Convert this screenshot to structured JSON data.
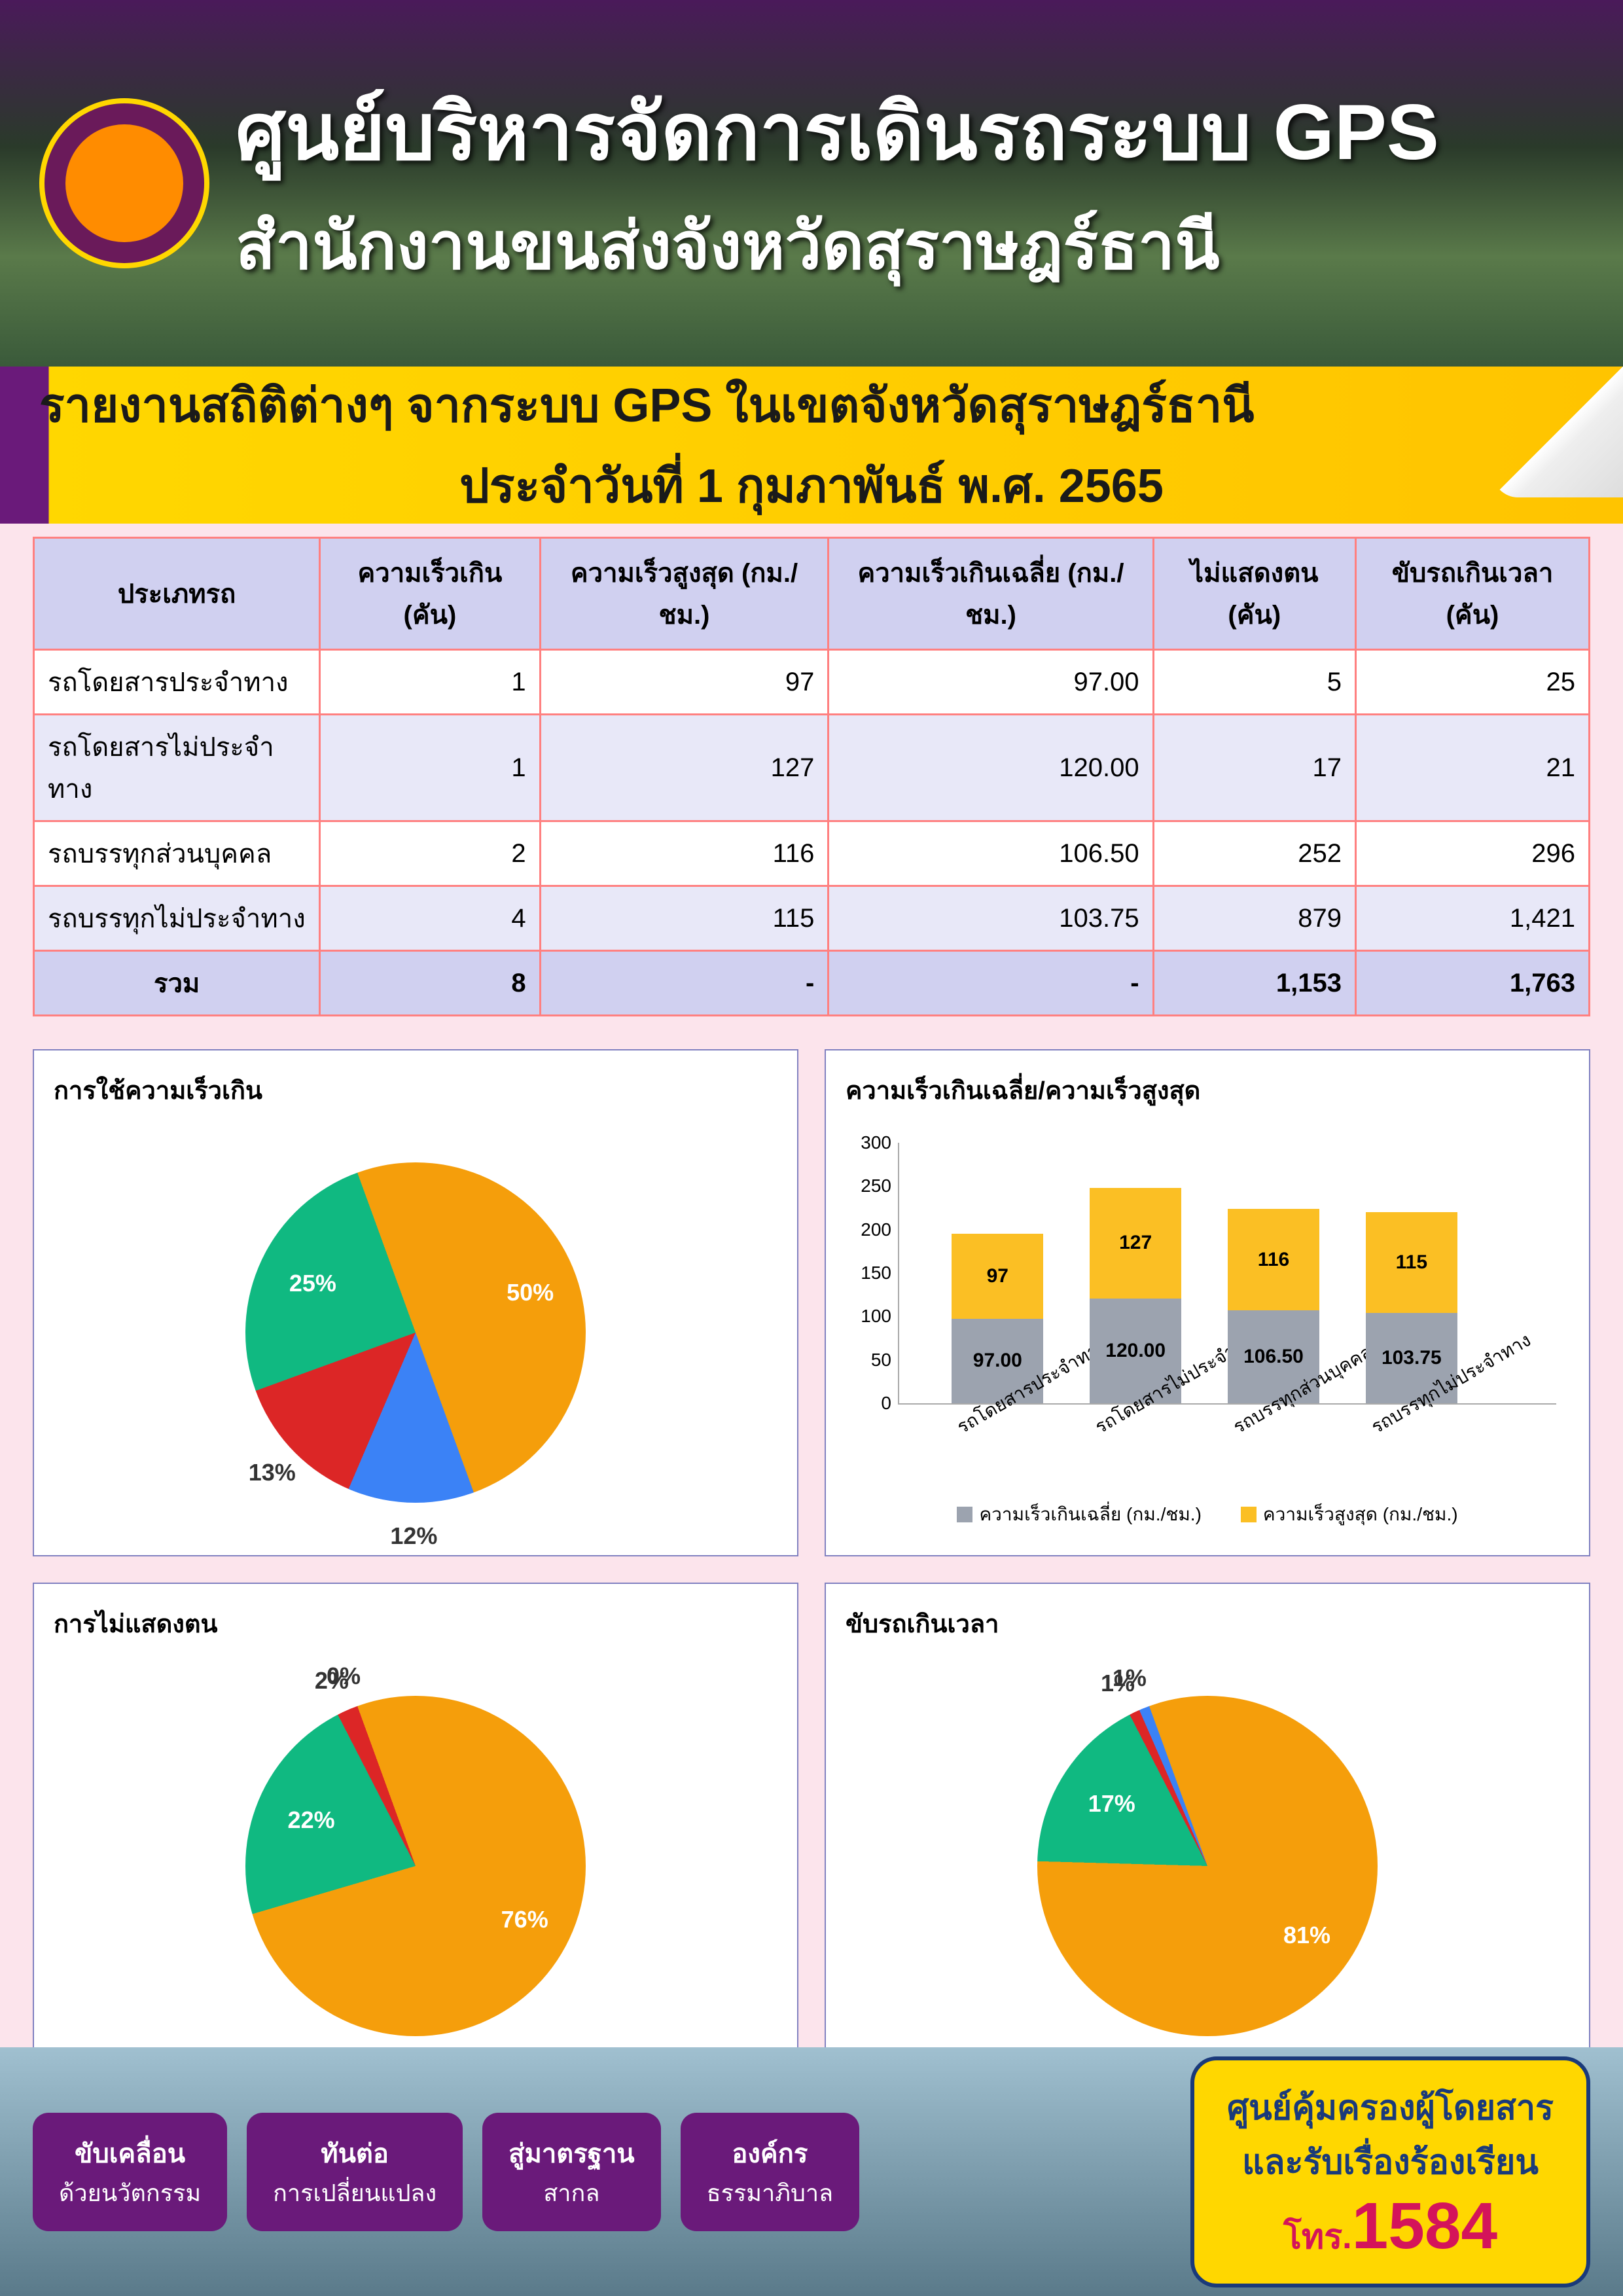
{
  "header": {
    "title": "ศูนย์บริหารจัดการเดินรถระบบ GPS",
    "subtitle": "สำนักงานขนส่งจังหวัดสุราษฎร์ธานี"
  },
  "banner": {
    "line1": "รายงานสถิติต่างๆ จากระบบ GPS ในเขตจังหวัดสุราษฎร์ธานี",
    "line2": "ประจำวันที่  1  กุมภาพันธ์ พ.ศ. 2565"
  },
  "table": {
    "columns": [
      "ประเภทรถ",
      "ความเร็วเกิน (คัน)",
      "ความเร็วสูงสุด (กม./ชม.)",
      "ความเร็วเกินเฉลี่ย (กม./ชม.)",
      "ไม่แสดงตน (คัน)",
      "ขับรถเกินเวลา (คัน)"
    ],
    "rows": [
      [
        "รถโดยสารประจำทาง",
        "1",
        "97",
        "97.00",
        "5",
        "25"
      ],
      [
        "รถโดยสารไม่ประจำทาง",
        "1",
        "127",
        "120.00",
        "17",
        "21"
      ],
      [
        "รถบรรทุกส่วนบุคคล",
        "2",
        "116",
        "106.50",
        "252",
        "296"
      ],
      [
        "รถบรรทุกไม่ประจำทาง",
        "4",
        "115",
        "103.75",
        "879",
        "1,421"
      ]
    ],
    "total": [
      "รวม",
      "8",
      "-",
      "-",
      "1,153",
      "1,763"
    ]
  },
  "colors": {
    "orange": "#f59e0b",
    "green": "#10b981",
    "teal": "#14b8a6",
    "blue": "#3b82f6",
    "red": "#dc2626",
    "gray": "#9ca3af",
    "yellow": "#fbbf24"
  },
  "pie1": {
    "title": "การใช้ความเร็วเกิน",
    "slices": [
      {
        "label": "50%",
        "value": 50,
        "color": "#f59e0b"
      },
      {
        "label": "12%",
        "value": 12,
        "color": "#3b82f6"
      },
      {
        "label": "13%",
        "value": 13,
        "color": "#dc2626"
      },
      {
        "label": "25%",
        "value": 25,
        "color": "#10b981"
      }
    ]
  },
  "bar": {
    "title": "ความเร็วเกินเฉลี่ย/ความเร็วสูงสุด",
    "ymax": 300,
    "ytick": 50,
    "categories": [
      "รถโดยสารประจำทาง",
      "รถโดยสารไม่ประจำทาง",
      "รถบรรทุกส่วนบุคคล",
      "รถบรรทุกไม่ประจำทาง"
    ],
    "series": [
      {
        "name": "ความเร็วเกินเฉลี่ย (กม./ชม.)",
        "color": "#9ca3af",
        "values": [
          "97.00",
          "120.00",
          "106.50",
          "103.75"
        ],
        "num": [
          97,
          120,
          106.5,
          103.75
        ]
      },
      {
        "name": "ความเร็วสูงสุด (กม./ชม.)",
        "color": "#fbbf24",
        "values": [
          "97",
          "127",
          "116",
          "115"
        ],
        "num": [
          97,
          127,
          116,
          115
        ]
      }
    ]
  },
  "pie2": {
    "title": "การไม่แสดงตน",
    "slices": [
      {
        "label": "76%",
        "value": 76,
        "color": "#f59e0b"
      },
      {
        "label": "22%",
        "value": 22,
        "color": "#10b981"
      },
      {
        "label": "2%",
        "value": 2,
        "color": "#dc2626"
      },
      {
        "label": "0%",
        "value": 0,
        "color": "#3b82f6"
      }
    ]
  },
  "pie3": {
    "title": "ขับรถเกินเวลา",
    "slices": [
      {
        "label": "81%",
        "value": 81,
        "color": "#f59e0b"
      },
      {
        "label": "17%",
        "value": 17,
        "color": "#10b981"
      },
      {
        "label": "1%",
        "value": 1,
        "color": "#dc2626"
      },
      {
        "label": "1%",
        "value": 1,
        "color": "#3b82f6"
      }
    ]
  },
  "footer": {
    "btns": [
      {
        "top": "ขับเคลื่อน",
        "sub": "ด้วยนวัตกรรม"
      },
      {
        "top": "ทันต่อ",
        "sub": "การเปลี่ยนแปลง"
      },
      {
        "top": "สู่มาตรฐาน",
        "sub": "สากล"
      },
      {
        "top": "องค์กร",
        "sub": "ธรรมาภิบาล"
      }
    ],
    "call": {
      "l1": "ศูนย์คุ้มครองผู้โดยสาร",
      "l2": "และรับเรื่องร้องเรียน",
      "l3": "โทร.",
      "num": "1584"
    }
  }
}
